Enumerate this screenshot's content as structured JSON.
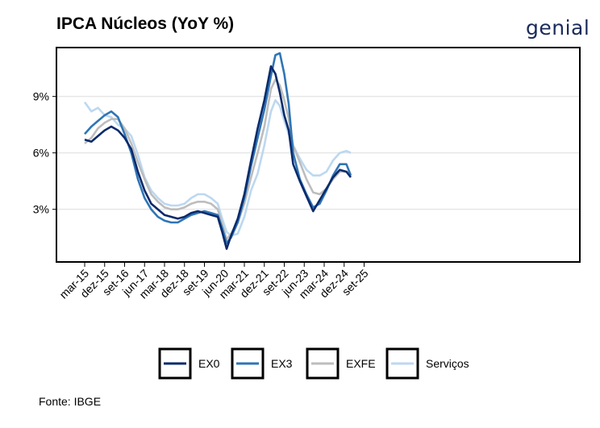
{
  "title": "IPCA Núcleos (YoY %)",
  "logo_text": "genial",
  "source": "Fonte: IBGE",
  "chart_data": {
    "type": "line",
    "title": "IPCA Núcleos (YoY %)",
    "xlabel": "",
    "ylabel": "",
    "x_ticks": [
      "mar-15",
      "dez-15",
      "set-16",
      "jun-17",
      "mar-18",
      "dez-18",
      "set-19",
      "jun-20",
      "mar-21",
      "dez-21",
      "set-22",
      "jun-23",
      "mar-24",
      "dez-24",
      "set-25"
    ],
    "y_ticks": [
      "3%",
      "6%",
      "9%"
    ],
    "ylim": [
      0.2,
      11.6
    ],
    "grid": "horizontal",
    "legend_position": "bottom",
    "series": [
      {
        "name": "EX0",
        "color": "#0b2a6b",
        "values": [
          [
            0,
            6.7
          ],
          [
            3,
            6.6
          ],
          [
            6,
            6.9
          ],
          [
            9,
            7.2
          ],
          [
            12,
            7.4
          ],
          [
            15,
            7.2
          ],
          [
            18,
            6.8
          ],
          [
            21,
            6.2
          ],
          [
            24,
            5.0
          ],
          [
            27,
            4.0
          ],
          [
            30,
            3.3
          ],
          [
            33,
            3.0
          ],
          [
            36,
            2.7
          ],
          [
            39,
            2.6
          ],
          [
            42,
            2.5
          ],
          [
            45,
            2.6
          ],
          [
            48,
            2.8
          ],
          [
            51,
            2.9
          ],
          [
            54,
            2.8
          ],
          [
            57,
            2.7
          ],
          [
            60,
            2.6
          ],
          [
            62,
            1.8
          ],
          [
            64,
            0.9
          ],
          [
            66,
            1.6
          ],
          [
            69,
            2.5
          ],
          [
            72,
            3.8
          ],
          [
            75,
            5.6
          ],
          [
            78,
            7.3
          ],
          [
            81,
            8.8
          ],
          [
            84,
            10.6
          ],
          [
            86,
            10.2
          ],
          [
            88,
            9.2
          ],
          [
            90,
            8.0
          ],
          [
            92,
            7.2
          ],
          [
            94,
            5.4
          ],
          [
            97,
            4.5
          ],
          [
            100,
            3.7
          ],
          [
            103,
            2.9
          ],
          [
            106,
            3.5
          ],
          [
            109,
            4.1
          ],
          [
            112,
            4.7
          ],
          [
            115,
            5.1
          ],
          [
            118,
            5.0
          ],
          [
            120,
            4.7
          ]
        ]
      },
      {
        "name": "EX3",
        "color": "#2f75b5",
        "values": [
          [
            0,
            7.0
          ],
          [
            3,
            7.4
          ],
          [
            6,
            7.7
          ],
          [
            9,
            8.0
          ],
          [
            12,
            8.2
          ],
          [
            15,
            7.9
          ],
          [
            18,
            7.0
          ],
          [
            21,
            6.0
          ],
          [
            24,
            4.6
          ],
          [
            27,
            3.6
          ],
          [
            30,
            3.0
          ],
          [
            33,
            2.6
          ],
          [
            36,
            2.4
          ],
          [
            39,
            2.3
          ],
          [
            42,
            2.3
          ],
          [
            45,
            2.5
          ],
          [
            48,
            2.7
          ],
          [
            51,
            2.8
          ],
          [
            54,
            2.9
          ],
          [
            57,
            2.8
          ],
          [
            60,
            2.7
          ],
          [
            62,
            2.0
          ],
          [
            64,
            1.2
          ],
          [
            66,
            1.5
          ],
          [
            69,
            2.3
          ],
          [
            72,
            3.6
          ],
          [
            75,
            5.3
          ],
          [
            78,
            6.8
          ],
          [
            81,
            8.3
          ],
          [
            84,
            10.1
          ],
          [
            86,
            11.2
          ],
          [
            88,
            11.3
          ],
          [
            90,
            10.2
          ],
          [
            92,
            8.6
          ],
          [
            94,
            6.0
          ],
          [
            97,
            4.6
          ],
          [
            100,
            3.8
          ],
          [
            103,
            3.1
          ],
          [
            106,
            3.3
          ],
          [
            109,
            4.0
          ],
          [
            112,
            4.8
          ],
          [
            115,
            5.4
          ],
          [
            118,
            5.4
          ],
          [
            120,
            4.8
          ]
        ]
      },
      {
        "name": "EXFE",
        "color": "#bdbdbd",
        "values": [
          [
            0,
            6.5
          ],
          [
            3,
            6.8
          ],
          [
            6,
            7.3
          ],
          [
            9,
            7.6
          ],
          [
            12,
            7.8
          ],
          [
            15,
            7.8
          ],
          [
            18,
            7.3
          ],
          [
            21,
            6.5
          ],
          [
            24,
            5.5
          ],
          [
            27,
            4.6
          ],
          [
            30,
            3.8
          ],
          [
            33,
            3.4
          ],
          [
            36,
            3.1
          ],
          [
            39,
            3.0
          ],
          [
            42,
            3.0
          ],
          [
            45,
            3.1
          ],
          [
            48,
            3.3
          ],
          [
            51,
            3.4
          ],
          [
            54,
            3.4
          ],
          [
            57,
            3.3
          ],
          [
            60,
            3.0
          ],
          [
            62,
            2.2
          ],
          [
            64,
            1.4
          ],
          [
            66,
            1.7
          ],
          [
            69,
            2.3
          ],
          [
            72,
            3.3
          ],
          [
            75,
            4.7
          ],
          [
            78,
            6.0
          ],
          [
            81,
            7.4
          ],
          [
            84,
            9.4
          ],
          [
            86,
            9.9
          ],
          [
            88,
            9.6
          ],
          [
            90,
            8.8
          ],
          [
            92,
            7.8
          ],
          [
            94,
            6.4
          ],
          [
            97,
            5.5
          ],
          [
            100,
            4.6
          ],
          [
            103,
            3.9
          ],
          [
            106,
            3.8
          ],
          [
            109,
            4.1
          ],
          [
            112,
            4.6
          ],
          [
            115,
            5.0
          ],
          [
            118,
            5.0
          ],
          [
            120,
            4.9
          ]
        ]
      },
      {
        "name": "Serviços",
        "color": "#bcd8f0",
        "values": [
          [
            0,
            8.7
          ],
          [
            3,
            8.2
          ],
          [
            6,
            8.4
          ],
          [
            9,
            8.0
          ],
          [
            12,
            7.9
          ],
          [
            15,
            7.5
          ],
          [
            18,
            7.3
          ],
          [
            21,
            6.9
          ],
          [
            24,
            5.9
          ],
          [
            27,
            4.7
          ],
          [
            30,
            4.0
          ],
          [
            33,
            3.6
          ],
          [
            36,
            3.3
          ],
          [
            39,
            3.2
          ],
          [
            42,
            3.2
          ],
          [
            45,
            3.3
          ],
          [
            48,
            3.6
          ],
          [
            51,
            3.8
          ],
          [
            54,
            3.8
          ],
          [
            57,
            3.6
          ],
          [
            60,
            3.3
          ],
          [
            62,
            2.5
          ],
          [
            64,
            1.8
          ],
          [
            66,
            1.6
          ],
          [
            69,
            1.7
          ],
          [
            72,
            2.6
          ],
          [
            75,
            4.0
          ],
          [
            78,
            4.9
          ],
          [
            81,
            6.4
          ],
          [
            84,
            8.2
          ],
          [
            86,
            8.8
          ],
          [
            88,
            8.5
          ],
          [
            90,
            7.7
          ],
          [
            92,
            7.0
          ],
          [
            94,
            6.4
          ],
          [
            97,
            5.7
          ],
          [
            100,
            5.1
          ],
          [
            103,
            4.8
          ],
          [
            106,
            4.8
          ],
          [
            109,
            5.0
          ],
          [
            112,
            5.6
          ],
          [
            115,
            6.0
          ],
          [
            118,
            6.1
          ],
          [
            120,
            6.0
          ]
        ]
      }
    ]
  }
}
